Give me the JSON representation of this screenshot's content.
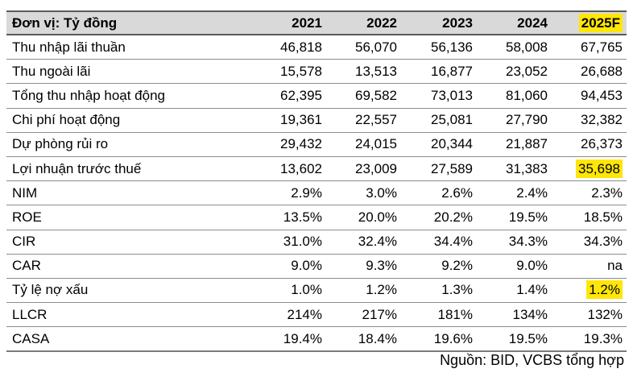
{
  "colors": {
    "header_bg": "#d9d9d9",
    "highlight_yellow": "#ffe606",
    "border_dark": "#5a5a5a",
    "border_light": "#8c8c8c",
    "text": "#000000"
  },
  "table": {
    "unit_header": "Đơn vị: Tỷ đồng",
    "year_columns": [
      "2021",
      "2022",
      "2023",
      "2024",
      "2025F"
    ],
    "highlighted_column_index": 4,
    "rows": [
      {
        "label": "Thu nhập lãi thuần",
        "values": [
          "46,818",
          "56,070",
          "56,136",
          "58,008",
          "67,765"
        ],
        "highlighted_values": []
      },
      {
        "label": "Thu ngoài lãi",
        "values": [
          "15,578",
          "13,513",
          "16,877",
          "23,052",
          "26,688"
        ],
        "highlighted_values": []
      },
      {
        "label": "Tổng thu nhập hoạt động",
        "values": [
          "62,395",
          "69,582",
          "73,013",
          "81,060",
          "94,453"
        ],
        "highlighted_values": []
      },
      {
        "label": "Chi phí hoạt động",
        "values": [
          "19,361",
          "22,557",
          "25,081",
          "27,790",
          "32,382"
        ],
        "highlighted_values": []
      },
      {
        "label": "Dự phòng rủi ro",
        "values": [
          "29,432",
          "24,015",
          "20,344",
          "21,887",
          "26,373"
        ],
        "highlighted_values": []
      },
      {
        "label": "Lợi nhuận trước thuế",
        "values": [
          "13,602",
          "23,009",
          "27,589",
          "31,383",
          "35,698"
        ],
        "highlighted_values": [
          4
        ]
      },
      {
        "label": "NIM",
        "values": [
          "2.9%",
          "3.0%",
          "2.6%",
          "2.4%",
          "2.3%"
        ],
        "highlighted_values": []
      },
      {
        "label": "ROE",
        "values": [
          "13.5%",
          "20.0%",
          "20.2%",
          "19.5%",
          "18.5%"
        ],
        "highlighted_values": []
      },
      {
        "label": "CIR",
        "values": [
          "31.0%",
          "32.4%",
          "34.4%",
          "34.3%",
          "34.3%"
        ],
        "highlighted_values": []
      },
      {
        "label": "CAR",
        "values": [
          "9.0%",
          "9.3%",
          "9.2%",
          "9.0%",
          "na"
        ],
        "highlighted_values": []
      },
      {
        "label": "Tỷ lệ nợ xấu",
        "values": [
          "1.0%",
          "1.2%",
          "1.3%",
          "1.4%",
          "1.2%"
        ],
        "highlighted_values": [
          4
        ]
      },
      {
        "label": "LLCR",
        "values": [
          "214%",
          "217%",
          "181%",
          "134%",
          "132%"
        ],
        "highlighted_values": []
      },
      {
        "label": "CASA",
        "values": [
          "19.4%",
          "18.4%",
          "19.6%",
          "19.5%",
          "19.3%"
        ],
        "highlighted_values": []
      }
    ]
  },
  "footer": {
    "source_text": "Nguồn: BID, VCBS tổng hợp"
  }
}
